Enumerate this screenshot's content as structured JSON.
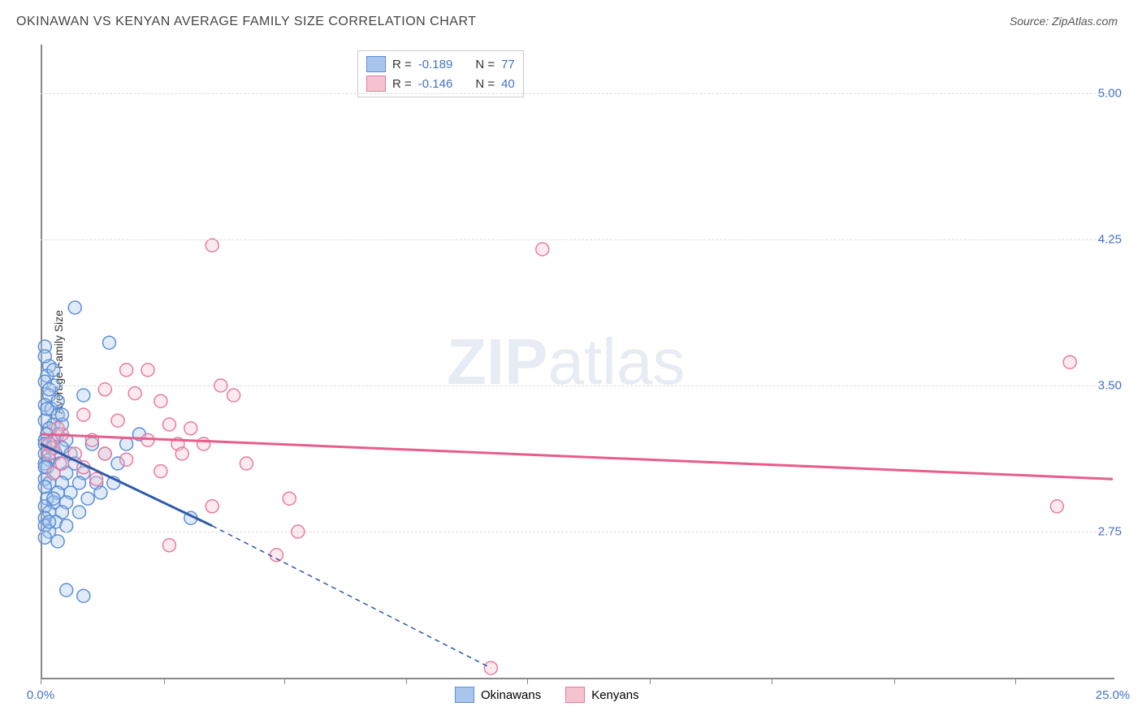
{
  "title": "OKINAWAN VS KENYAN AVERAGE FAMILY SIZE CORRELATION CHART",
  "source_label": "Source:",
  "source_name": "ZipAtlas.com",
  "y_axis_label": "Average Family Size",
  "watermark_bold": "ZIP",
  "watermark_light": "atlas",
  "chart": {
    "type": "scatter",
    "background_color": "#ffffff",
    "grid_color": "#dddddd",
    "axis_color": "#888888",
    "x_min": 0.0,
    "x_max": 25.0,
    "x_tick_labels": [
      "0.0%",
      "25.0%"
    ],
    "x_tick_positions_pct": [
      0,
      11.5,
      22.7,
      34.1,
      45.4,
      56.8,
      68.2,
      79.6,
      90.9
    ],
    "y_min": 2.0,
    "y_max": 5.25,
    "y_ticks": [
      2.75,
      3.5,
      4.25,
      5.0
    ],
    "y_tick_labels": [
      "2.75",
      "3.50",
      "4.25",
      "5.00"
    ],
    "y_tick_label_color": "#4472c4",
    "x_tick_label_color": "#4472c4",
    "marker_radius": 8,
    "marker_fill_opacity": 0.35,
    "marker_stroke_width": 1.5,
    "line_width_solid": 3,
    "line_width_dash": 1.5,
    "dash_pattern": "6,5"
  },
  "series": {
    "okinawans": {
      "label": "Okinawans",
      "color_fill": "#a8c6ec",
      "color_stroke": "#5b8fd6",
      "trend_color": "#2e5ca8",
      "R": "-0.189",
      "N": "77",
      "trend_start": {
        "x": 0.0,
        "y": 3.2
      },
      "trend_solid_end": {
        "x": 4.0,
        "y": 2.78
      },
      "trend_dash_end": {
        "x": 10.5,
        "y": 2.05
      },
      "points": [
        {
          "x": 0.1,
          "y": 3.7
        },
        {
          "x": 0.2,
          "y": 3.6
        },
        {
          "x": 0.15,
          "y": 3.55
        },
        {
          "x": 0.3,
          "y": 3.5
        },
        {
          "x": 0.2,
          "y": 3.45
        },
        {
          "x": 0.1,
          "y": 3.4
        },
        {
          "x": 0.25,
          "y": 3.38
        },
        {
          "x": 0.4,
          "y": 3.35
        },
        {
          "x": 0.1,
          "y": 3.32
        },
        {
          "x": 0.3,
          "y": 3.3
        },
        {
          "x": 0.5,
          "y": 3.3
        },
        {
          "x": 0.2,
          "y": 3.28
        },
        {
          "x": 0.15,
          "y": 3.25
        },
        {
          "x": 0.4,
          "y": 3.25
        },
        {
          "x": 0.1,
          "y": 3.22
        },
        {
          "x": 0.3,
          "y": 3.22
        },
        {
          "x": 0.6,
          "y": 3.22
        },
        {
          "x": 0.1,
          "y": 3.2
        },
        {
          "x": 0.25,
          "y": 3.18
        },
        {
          "x": 0.5,
          "y": 3.18
        },
        {
          "x": 0.1,
          "y": 3.15
        },
        {
          "x": 0.35,
          "y": 3.15
        },
        {
          "x": 0.7,
          "y": 3.15
        },
        {
          "x": 0.2,
          "y": 3.12
        },
        {
          "x": 0.1,
          "y": 3.1
        },
        {
          "x": 0.45,
          "y": 3.1
        },
        {
          "x": 0.8,
          "y": 3.1
        },
        {
          "x": 0.15,
          "y": 3.08
        },
        {
          "x": 0.3,
          "y": 3.05
        },
        {
          "x": 0.6,
          "y": 3.05
        },
        {
          "x": 1.0,
          "y": 3.05
        },
        {
          "x": 0.1,
          "y": 3.02
        },
        {
          "x": 0.2,
          "y": 3.0
        },
        {
          "x": 0.5,
          "y": 3.0
        },
        {
          "x": 0.9,
          "y": 3.0
        },
        {
          "x": 1.3,
          "y": 3.0
        },
        {
          "x": 0.1,
          "y": 2.98
        },
        {
          "x": 0.4,
          "y": 2.95
        },
        {
          "x": 0.7,
          "y": 2.95
        },
        {
          "x": 0.15,
          "y": 2.92
        },
        {
          "x": 0.3,
          "y": 2.9
        },
        {
          "x": 0.6,
          "y": 2.9
        },
        {
          "x": 1.1,
          "y": 2.92
        },
        {
          "x": 0.1,
          "y": 2.88
        },
        {
          "x": 0.2,
          "y": 2.85
        },
        {
          "x": 0.5,
          "y": 2.85
        },
        {
          "x": 0.9,
          "y": 2.85
        },
        {
          "x": 0.1,
          "y": 2.82
        },
        {
          "x": 0.35,
          "y": 2.8
        },
        {
          "x": 0.1,
          "y": 2.78
        },
        {
          "x": 0.6,
          "y": 2.78
        },
        {
          "x": 0.2,
          "y": 2.75
        },
        {
          "x": 0.1,
          "y": 2.72
        },
        {
          "x": 0.4,
          "y": 2.7
        },
        {
          "x": 1.6,
          "y": 3.72
        },
        {
          "x": 0.8,
          "y": 3.9
        },
        {
          "x": 1.0,
          "y": 3.45
        },
        {
          "x": 1.2,
          "y": 3.2
        },
        {
          "x": 1.5,
          "y": 3.15
        },
        {
          "x": 1.8,
          "y": 3.1
        },
        {
          "x": 1.4,
          "y": 2.95
        },
        {
          "x": 1.7,
          "y": 3.0
        },
        {
          "x": 2.0,
          "y": 3.2
        },
        {
          "x": 2.3,
          "y": 3.25
        },
        {
          "x": 3.5,
          "y": 2.82
        },
        {
          "x": 0.6,
          "y": 2.45
        },
        {
          "x": 1.0,
          "y": 2.42
        },
        {
          "x": 0.1,
          "y": 3.65
        },
        {
          "x": 0.3,
          "y": 3.58
        },
        {
          "x": 0.1,
          "y": 3.52
        },
        {
          "x": 0.2,
          "y": 3.48
        },
        {
          "x": 0.4,
          "y": 3.42
        },
        {
          "x": 0.15,
          "y": 3.38
        },
        {
          "x": 0.5,
          "y": 3.35
        },
        {
          "x": 0.1,
          "y": 3.08
        },
        {
          "x": 0.3,
          "y": 2.92
        },
        {
          "x": 0.2,
          "y": 2.8
        }
      ]
    },
    "kenyans": {
      "label": "Kenyans",
      "color_fill": "#f5c2cf",
      "color_stroke": "#e87ba0",
      "trend_color": "#e85d8a",
      "R": "-0.146",
      "N": "40",
      "trend_start": {
        "x": 0.0,
        "y": 3.25
      },
      "trend_solid_end": {
        "x": 25.0,
        "y": 3.02
      },
      "points": [
        {
          "x": 4.0,
          "y": 4.22
        },
        {
          "x": 11.7,
          "y": 4.2
        },
        {
          "x": 2.0,
          "y": 3.58
        },
        {
          "x": 2.5,
          "y": 3.58
        },
        {
          "x": 1.5,
          "y": 3.48
        },
        {
          "x": 2.2,
          "y": 3.46
        },
        {
          "x": 2.8,
          "y": 3.42
        },
        {
          "x": 4.2,
          "y": 3.5
        },
        {
          "x": 4.5,
          "y": 3.45
        },
        {
          "x": 1.0,
          "y": 3.35
        },
        {
          "x": 1.8,
          "y": 3.32
        },
        {
          "x": 3.0,
          "y": 3.3
        },
        {
          "x": 3.5,
          "y": 3.28
        },
        {
          "x": 0.5,
          "y": 3.25
        },
        {
          "x": 1.2,
          "y": 3.22
        },
        {
          "x": 2.5,
          "y": 3.22
        },
        {
          "x": 3.2,
          "y": 3.2
        },
        {
          "x": 3.8,
          "y": 3.2
        },
        {
          "x": 0.3,
          "y": 3.18
        },
        {
          "x": 0.8,
          "y": 3.15
        },
        {
          "x": 1.5,
          "y": 3.15
        },
        {
          "x": 0.2,
          "y": 3.15
        },
        {
          "x": 2.0,
          "y": 3.12
        },
        {
          "x": 3.3,
          "y": 3.15
        },
        {
          "x": 4.8,
          "y": 3.1
        },
        {
          "x": 0.5,
          "y": 3.1
        },
        {
          "x": 1.0,
          "y": 3.08
        },
        {
          "x": 2.8,
          "y": 3.06
        },
        {
          "x": 0.3,
          "y": 3.05
        },
        {
          "x": 1.3,
          "y": 3.02
        },
        {
          "x": 0.2,
          "y": 3.2
        },
        {
          "x": 3.0,
          "y": 2.68
        },
        {
          "x": 4.0,
          "y": 2.88
        },
        {
          "x": 5.8,
          "y": 2.92
        },
        {
          "x": 6.0,
          "y": 2.75
        },
        {
          "x": 5.5,
          "y": 2.63
        },
        {
          "x": 10.5,
          "y": 2.05
        },
        {
          "x": 24.0,
          "y": 3.62
        },
        {
          "x": 23.7,
          "y": 2.88
        },
        {
          "x": 0.4,
          "y": 3.28
        }
      ]
    }
  },
  "legend_top": {
    "R_label": "R =",
    "N_label": "N ="
  },
  "legend_bottom": {
    "items": [
      "okinawans",
      "kenyans"
    ]
  }
}
